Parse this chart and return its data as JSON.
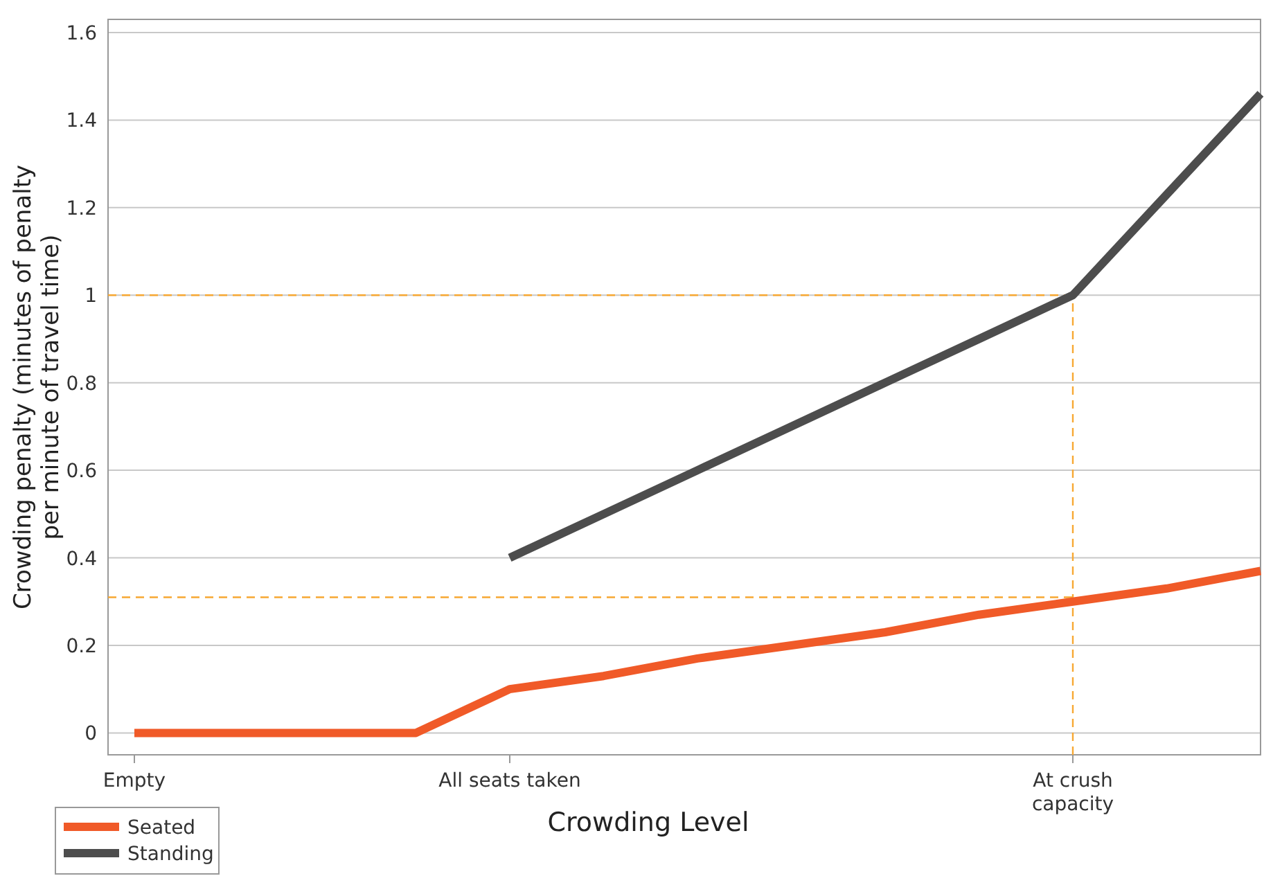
{
  "chart_data": {
    "type": "line",
    "xlabel": "Crowding Level",
    "ylabel": "Crowding penalty (minutes of penalty per minute of travel time)",
    "categories": [
      "Empty",
      null,
      null,
      null,
      "All seats taken",
      null,
      null,
      null,
      null,
      null,
      "At crush capacity",
      null,
      null
    ],
    "ylim": [
      -0.05,
      1.63
    ],
    "yticks": [
      0,
      0.2,
      0.4,
      0.6,
      0.8,
      1,
      1.2,
      1.4,
      1.6
    ],
    "grid": "y",
    "legend": "bottom left",
    "line_style": "solid",
    "series": [
      {
        "name": "Seated",
        "color": "#f05a28",
        "values": [
          0,
          0,
          0,
          0,
          0.1,
          0.13,
          0.17,
          0.2,
          0.23,
          0.27,
          0.3,
          0.33,
          0.37
        ]
      },
      {
        "name": "Standing",
        "color": "#4d4d4d",
        "values": [
          null,
          null,
          null,
          null,
          0.4,
          0.5,
          0.6,
          0.7,
          0.8,
          0.9,
          1,
          1.23,
          1.46
        ]
      }
    ],
    "ref_lines": [
      {
        "axis": "y",
        "value": 1,
        "label": null,
        "color": "#f7a833",
        "line_style": "dashed"
      },
      {
        "axis": "y",
        "value": 0.31,
        "label": null,
        "color": "#f7a833",
        "line_style": "dashed"
      },
      {
        "axis": "x",
        "value": "At crush capacity",
        "label": null,
        "color": "#f7a833",
        "line_style": "dashed"
      }
    ]
  }
}
